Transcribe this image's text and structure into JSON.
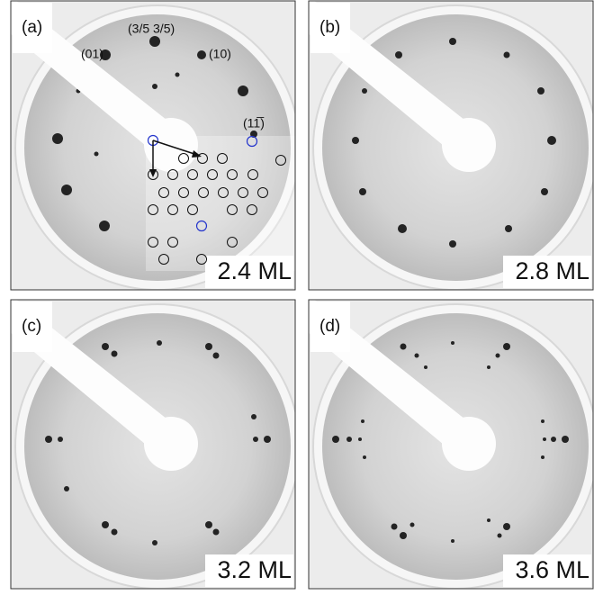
{
  "panels": [
    {
      "label": "(a)",
      "coverage": "2.4 ML"
    },
    {
      "label": "(b)",
      "coverage": "2.8 ML"
    },
    {
      "label": "(c)",
      "coverage": "3.2 ML"
    },
    {
      "label": "(d)",
      "coverage": "3.6 ML"
    }
  ],
  "annotations": {
    "spot_01": "(01)",
    "spot_35": "(3/5 3/5)",
    "spot_10": "(10)",
    "spot_11bar": "(11̅)"
  }
}
